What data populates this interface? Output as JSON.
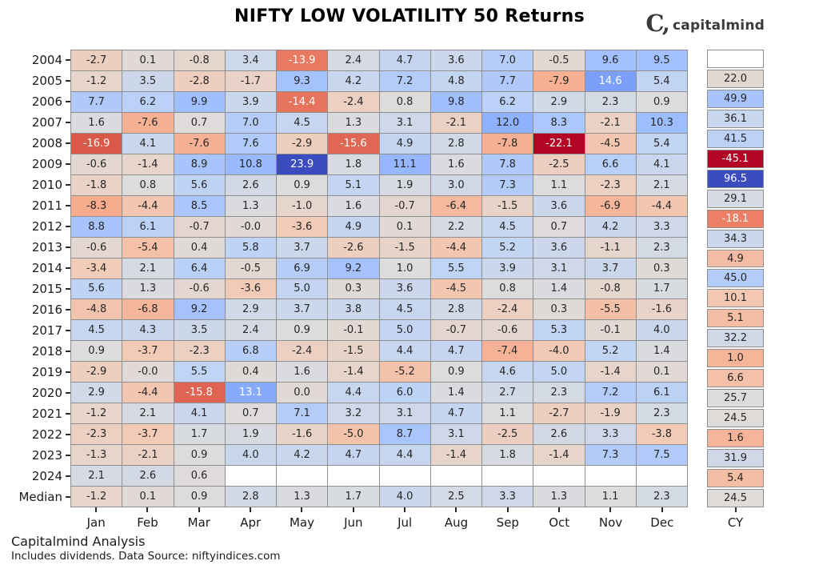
{
  "title": "NIFTY LOW VOLATILITY 50 Returns",
  "logo": {
    "mark": "C,",
    "text": "capitalmind"
  },
  "footer": {
    "line1": "Capitalmind Analysis",
    "line2": "Includes dividends. Data Source: niftyindices.com"
  },
  "chart_data": {
    "type": "heatmap",
    "title": "NIFTY LOW VOLATILITY 50 Returns",
    "columns": [
      "Jan",
      "Feb",
      "Mar",
      "Apr",
      "May",
      "Jun",
      "Jul",
      "Aug",
      "Sep",
      "Oct",
      "Nov",
      "Dec"
    ],
    "cy_label": "CY",
    "rows": [
      {
        "label": "2004",
        "values": [
          "-2.7",
          "0.1",
          "-0.8",
          "3.4",
          "-13.9",
          "2.4",
          "4.7",
          "3.6",
          "7.0",
          "-0.5",
          "9.6",
          "9.5"
        ]
      },
      {
        "label": "2005",
        "values": [
          "-1.2",
          "3.5",
          "-2.8",
          "-1.7",
          "9.3",
          "4.2",
          "7.2",
          "4.8",
          "7.7",
          "-7.9",
          "14.6",
          "5.4"
        ]
      },
      {
        "label": "2006",
        "values": [
          "7.7",
          "6.2",
          "9.9",
          "3.9",
          "-14.4",
          "-2.4",
          "0.8",
          "9.8",
          "6.2",
          "2.9",
          "2.3",
          "0.9"
        ]
      },
      {
        "label": "2007",
        "values": [
          "1.6",
          "-7.6",
          "0.7",
          "7.0",
          "4.5",
          "1.3",
          "3.1",
          "-2.1",
          "12.0",
          "8.3",
          "-2.1",
          "10.3"
        ]
      },
      {
        "label": "2008",
        "values": [
          "-16.9",
          "4.1",
          "-7.6",
          "7.6",
          "-2.9",
          "-15.6",
          "4.9",
          "2.8",
          "-7.8",
          "-22.1",
          "-4.5",
          "5.4"
        ]
      },
      {
        "label": "2009",
        "values": [
          "-0.6",
          "-1.4",
          "8.9",
          "10.8",
          "23.9",
          "1.8",
          "11.1",
          "1.6",
          "7.8",
          "-2.5",
          "6.6",
          "4.1"
        ]
      },
      {
        "label": "2010",
        "values": [
          "-1.8",
          "0.8",
          "5.6",
          "2.6",
          "0.9",
          "5.1",
          "1.9",
          "3.0",
          "7.3",
          "1.1",
          "-2.3",
          "2.1"
        ]
      },
      {
        "label": "2011",
        "values": [
          "-8.3",
          "-4.4",
          "8.5",
          "1.3",
          "-1.0",
          "1.6",
          "-0.7",
          "-6.4",
          "-1.5",
          "3.6",
          "-6.9",
          "-4.4"
        ]
      },
      {
        "label": "2012",
        "values": [
          "8.8",
          "6.1",
          "-0.7",
          "-0.0",
          "-3.6",
          "4.9",
          "0.1",
          "2.2",
          "4.5",
          "0.7",
          "4.2",
          "3.3"
        ]
      },
      {
        "label": "2013",
        "values": [
          "-0.6",
          "-5.4",
          "0.4",
          "5.8",
          "3.7",
          "-2.6",
          "-1.5",
          "-4.4",
          "5.2",
          "3.6",
          "-1.1",
          "2.3"
        ]
      },
      {
        "label": "2014",
        "values": [
          "-3.4",
          "2.1",
          "6.4",
          "-0.5",
          "6.9",
          "9.2",
          "1.0",
          "5.5",
          "3.9",
          "3.1",
          "3.7",
          "0.3"
        ]
      },
      {
        "label": "2015",
        "values": [
          "5.6",
          "1.3",
          "-0.6",
          "-3.6",
          "5.0",
          "0.3",
          "3.6",
          "-4.5",
          "0.8",
          "1.4",
          "-0.8",
          "1.7"
        ]
      },
      {
        "label": "2016",
        "values": [
          "-4.8",
          "-6.8",
          "9.2",
          "2.9",
          "3.7",
          "3.8",
          "4.5",
          "2.8",
          "-2.4",
          "0.3",
          "-5.5",
          "-1.6"
        ]
      },
      {
        "label": "2017",
        "values": [
          "4.5",
          "4.3",
          "3.5",
          "2.4",
          "0.9",
          "-0.1",
          "5.0",
          "-0.7",
          "-0.6",
          "5.3",
          "-0.1",
          "4.0"
        ]
      },
      {
        "label": "2018",
        "values": [
          "0.9",
          "-3.7",
          "-2.3",
          "6.8",
          "-2.4",
          "-1.5",
          "4.4",
          "4.7",
          "-7.4",
          "-4.0",
          "5.2",
          "1.4"
        ]
      },
      {
        "label": "2019",
        "values": [
          "-2.9",
          "-0.0",
          "5.5",
          "0.4",
          "1.6",
          "-1.4",
          "-5.2",
          "0.9",
          "4.6",
          "5.0",
          "-1.4",
          "0.1"
        ]
      },
      {
        "label": "2020",
        "values": [
          "2.9",
          "-4.4",
          "-15.8",
          "13.1",
          "0.0",
          "4.4",
          "6.0",
          "1.4",
          "2.7",
          "2.3",
          "7.2",
          "6.1"
        ]
      },
      {
        "label": "2021",
        "values": [
          "-1.2",
          "2.1",
          "4.1",
          "0.7",
          "7.1",
          "3.2",
          "3.1",
          "4.7",
          "1.1",
          "-2.7",
          "-1.9",
          "2.3"
        ]
      },
      {
        "label": "2022",
        "values": [
          "-2.3",
          "-3.7",
          "1.7",
          "1.9",
          "-1.6",
          "-5.0",
          "8.7",
          "3.1",
          "-2.5",
          "2.6",
          "3.3",
          "-3.8"
        ]
      },
      {
        "label": "2023",
        "values": [
          "-1.3",
          "-2.1",
          "0.9",
          "4.0",
          "4.2",
          "4.7",
          "4.4",
          "-1.4",
          "1.8",
          "-1.4",
          "7.3",
          "7.5"
        ]
      },
      {
        "label": "2024",
        "values": [
          "2.1",
          "2.6",
          "0.6",
          "",
          "",
          "",
          "",
          "",
          "",
          "",
          "",
          ""
        ]
      },
      {
        "label": "Median",
        "values": [
          "-1.2",
          "0.1",
          "0.9",
          "2.8",
          "1.3",
          "1.7",
          "4.0",
          "2.5",
          "3.3",
          "1.3",
          "1.1",
          "2.3"
        ]
      }
    ],
    "cy_values": [
      "",
      "22.0",
      "49.9",
      "36.1",
      "41.5",
      "-45.1",
      "96.5",
      "29.1",
      "-18.1",
      "34.3",
      "4.9",
      "45.0",
      "10.1",
      "5.1",
      "32.2",
      "1.0",
      "6.6",
      "25.7",
      "24.5",
      "1.6",
      "31.9",
      "5.4",
      "24.5"
    ],
    "scale": {
      "colormap": "coolwarm_r (blue = high, red = low)",
      "month_vmin": -22.1,
      "month_vmax": 23.9,
      "cy_vmin": -45.1,
      "cy_vmax": 96.5,
      "colormap_stops": [
        "#3b4cc0",
        "#5977e3",
        "#7b9ff9",
        "#9ebeff",
        "#c0d4f5",
        "#dddcdc",
        "#f2cbb7",
        "#f7ac8e",
        "#ee8468",
        "#d65244",
        "#b40426"
      ],
      "grid_line_color": "#8f8f8f",
      "blank_cell_color": "#ffffff",
      "annotation_dark_text": "#262626",
      "annotation_light_text": "#ffffff"
    },
    "layout": {
      "legend": "none",
      "grid": "on",
      "cy_column_top_cell_blank": true
    }
  }
}
